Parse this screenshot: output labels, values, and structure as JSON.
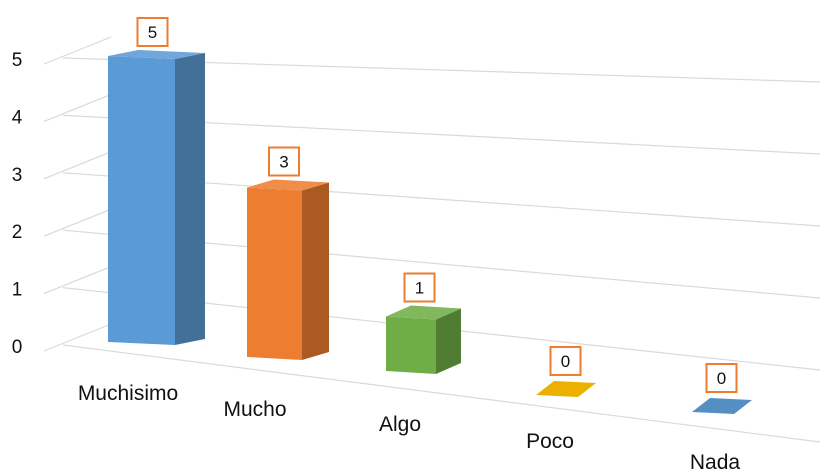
{
  "chart_data": {
    "type": "bar",
    "style": "3d-column",
    "title": "",
    "xlabel": "",
    "ylabel": "",
    "categories": [
      "Muchisimo",
      "Mucho",
      "Algo",
      "Poco",
      "Nada"
    ],
    "values": [
      5,
      3,
      1,
      0,
      0
    ],
    "data_labels": [
      "5",
      "3",
      "1",
      "0",
      "0"
    ],
    "ylim": [
      0,
      5
    ],
    "yticks": [
      "0",
      "1",
      "2",
      "3",
      "4",
      "5"
    ],
    "grid": true,
    "legend": "none",
    "colors": [
      "#5B9BD5",
      "#ED7D31",
      "#70AD47",
      "#FFC000",
      "#5B9BD5"
    ],
    "data_label_border_color": "#ED7D31"
  }
}
